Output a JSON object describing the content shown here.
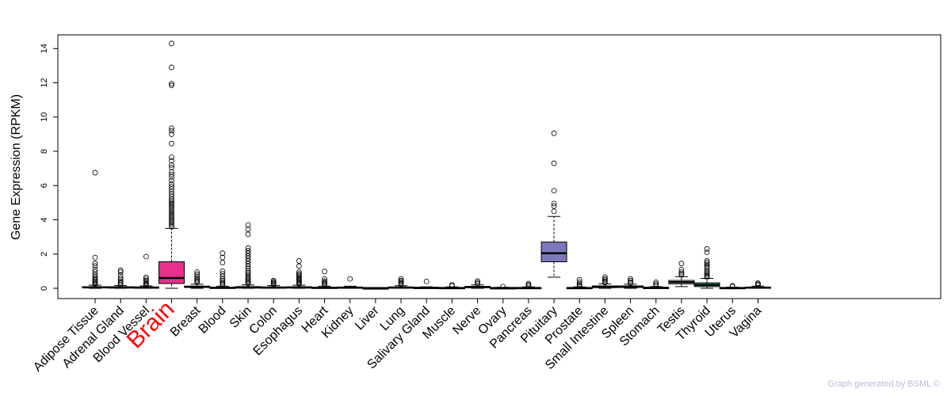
{
  "chart_data": {
    "type": "box",
    "title": "",
    "xlabel": "",
    "ylabel": "Gene Expression (RPKM)",
    "ylim": [
      -0.6,
      14.8
    ],
    "yticks": [
      0,
      2,
      4,
      6,
      8,
      10,
      12,
      14
    ],
    "grid": false,
    "legend": "none",
    "highlight_category": "Brain",
    "highlight_label_color": "#ff0000",
    "categories": [
      {
        "name": "Adipose Tissue",
        "q1": 0.03,
        "median": 0.06,
        "q3": 0.09,
        "whisker_low": 0.0,
        "whisker_high": 0.18,
        "fill": "#ffffff",
        "outliers": [
          6.75,
          1.8,
          1.45,
          1.3,
          1.1,
          0.95,
          0.8,
          0.7,
          0.6,
          0.5,
          0.42,
          0.35,
          0.28,
          0.22
        ]
      },
      {
        "name": "Adrenal Gland",
        "q1": 0.03,
        "median": 0.05,
        "q3": 0.09,
        "whisker_low": 0.0,
        "whisker_high": 0.16,
        "fill": "#ffffff",
        "outliers": [
          1.05,
          0.95,
          0.75,
          0.6,
          0.48,
          0.38,
          0.3,
          0.22
        ]
      },
      {
        "name": "Blood Vessel",
        "q1": 0.02,
        "median": 0.04,
        "q3": 0.08,
        "whisker_low": 0.0,
        "whisker_high": 0.14,
        "fill": "#ffffff",
        "outliers": [
          1.85,
          0.65,
          0.55,
          0.45,
          0.38,
          0.3,
          0.24,
          0.18
        ]
      },
      {
        "name": "Brain",
        "q1": 0.28,
        "median": 0.6,
        "q3": 1.55,
        "whisker_low": 0.0,
        "whisker_high": 3.5,
        "fill": "#e8308c",
        "outliers": [
          14.3,
          12.9,
          11.95,
          11.85,
          9.35,
          9.2,
          9.0,
          8.45,
          7.65,
          7.45,
          7.2,
          7.05,
          6.8,
          6.65,
          6.5,
          6.3,
          6.1,
          5.95,
          5.8,
          5.65,
          5.5,
          5.35,
          5.2,
          5.1,
          5.0,
          4.9,
          4.8,
          4.7,
          4.6,
          4.5,
          4.4,
          4.3,
          4.2,
          4.1,
          4.0,
          3.9,
          3.8,
          3.7,
          3.6
        ]
      },
      {
        "name": "Breast",
        "q1": 0.05,
        "median": 0.08,
        "q3": 0.13,
        "whisker_low": 0.0,
        "whisker_high": 0.24,
        "fill": "#ffffff",
        "outliers": [
          0.95,
          0.82,
          0.7,
          0.6,
          0.5,
          0.42,
          0.35
        ]
      },
      {
        "name": "Blood",
        "q1": 0.01,
        "median": 0.03,
        "q3": 0.06,
        "whisker_low": 0.0,
        "whisker_high": 0.12,
        "fill": "#ffffff",
        "outliers": [
          2.05,
          1.8,
          1.5,
          1.0,
          0.85,
          0.7,
          0.55,
          0.45,
          0.35,
          0.27,
          0.2
        ]
      },
      {
        "name": "Skin",
        "q1": 0.02,
        "median": 0.05,
        "q3": 0.1,
        "whisker_low": 0.0,
        "whisker_high": 0.2,
        "fill": "#ffffff",
        "outliers": [
          3.7,
          3.45,
          3.15,
          2.35,
          2.2,
          2.05,
          1.9,
          1.75,
          1.6,
          1.45,
          1.3,
          1.15,
          1.0,
          0.9,
          0.8,
          0.7,
          0.6,
          0.5,
          0.42,
          0.35,
          0.28
        ]
      },
      {
        "name": "Colon",
        "q1": 0.02,
        "median": 0.04,
        "q3": 0.08,
        "whisker_low": 0.0,
        "whisker_high": 0.16,
        "fill": "#ffffff",
        "outliers": [
          0.45,
          0.38,
          0.32,
          0.26,
          0.21
        ]
      },
      {
        "name": "Esophagus",
        "q1": 0.02,
        "median": 0.05,
        "q3": 0.09,
        "whisker_low": 0.0,
        "whisker_high": 0.18,
        "fill": "#ffffff",
        "outliers": [
          1.6,
          1.3,
          0.95,
          0.85,
          0.78,
          0.7,
          0.62,
          0.55,
          0.48,
          0.42,
          0.36,
          0.3,
          0.25
        ]
      },
      {
        "name": "Heart",
        "q1": 0.01,
        "median": 0.03,
        "q3": 0.06,
        "whisker_low": 0.0,
        "whisker_high": 0.12,
        "fill": "#ffffff",
        "outliers": [
          0.98,
          0.55,
          0.42,
          0.34,
          0.27,
          0.2
        ]
      },
      {
        "name": "Kidney",
        "q1": 0.02,
        "median": 0.04,
        "q3": 0.07,
        "whisker_low": 0.0,
        "whisker_high": 0.12,
        "fill": "#ffffff",
        "outliers": [
          0.55
        ]
      },
      {
        "name": "Liver",
        "q1": 0.0,
        "median": 0.01,
        "q3": 0.02,
        "whisker_low": 0.0,
        "whisker_high": 0.04,
        "fill": "#ffffff",
        "outliers": []
      },
      {
        "name": "Lung",
        "q1": 0.02,
        "median": 0.04,
        "q3": 0.08,
        "whisker_low": 0.0,
        "whisker_high": 0.15,
        "fill": "#ffffff",
        "outliers": [
          0.55,
          0.45,
          0.38,
          0.3,
          0.24
        ]
      },
      {
        "name": "Salivary Gland",
        "q1": 0.02,
        "median": 0.03,
        "q3": 0.05,
        "whisker_low": 0.0,
        "whisker_high": 0.09,
        "fill": "#ffffff",
        "outliers": [
          0.4
        ]
      },
      {
        "name": "Muscle",
        "q1": 0.01,
        "median": 0.02,
        "q3": 0.04,
        "whisker_low": 0.0,
        "whisker_high": 0.08,
        "fill": "#ffffff",
        "outliers": [
          0.2,
          0.14
        ]
      },
      {
        "name": "Nerve",
        "q1": 0.04,
        "median": 0.07,
        "q3": 0.11,
        "whisker_low": 0.0,
        "whisker_high": 0.2,
        "fill": "#ffffff",
        "outliers": [
          0.42,
          0.33,
          0.26
        ]
      },
      {
        "name": "Ovary",
        "q1": 0.0,
        "median": 0.02,
        "q3": 0.03,
        "whisker_low": 0.0,
        "whisker_high": 0.06,
        "fill": "#ffffff",
        "outliers": [
          0.1
        ]
      },
      {
        "name": "Pancreas",
        "q1": 0.01,
        "median": 0.02,
        "q3": 0.04,
        "whisker_low": 0.0,
        "whisker_high": 0.08,
        "fill": "#ffffff",
        "outliers": [
          0.28,
          0.2,
          0.14
        ]
      },
      {
        "name": "Pituitary",
        "q1": 1.55,
        "median": 2.05,
        "q3": 2.7,
        "whisker_low": 0.65,
        "whisker_high": 4.2,
        "fill": "#7b78bb",
        "outliers": [
          9.05,
          7.3,
          5.7,
          4.95,
          4.8,
          4.5
        ]
      },
      {
        "name": "Prostate",
        "q1": 0.01,
        "median": 0.02,
        "q3": 0.04,
        "whisker_low": 0.0,
        "whisker_high": 0.08,
        "fill": "#ffffff",
        "outliers": [
          0.5,
          0.35,
          0.25,
          0.18,
          0.12
        ]
      },
      {
        "name": "Small Intestine",
        "q1": 0.04,
        "median": 0.08,
        "q3": 0.14,
        "whisker_low": 0.0,
        "whisker_high": 0.26,
        "fill": "#ffffff",
        "outliers": [
          0.65,
          0.55,
          0.48,
          0.4,
          0.33
        ]
      },
      {
        "name": "Spleen",
        "q1": 0.05,
        "median": 0.09,
        "q3": 0.14,
        "whisker_low": 0.0,
        "whisker_high": 0.24,
        "fill": "#ffffff",
        "outliers": [
          0.55,
          0.45,
          0.36,
          0.3
        ]
      },
      {
        "name": "Stomach",
        "q1": 0.01,
        "median": 0.03,
        "q3": 0.05,
        "whisker_low": 0.0,
        "whisker_high": 0.1,
        "fill": "#ffffff",
        "outliers": [
          0.35,
          0.25,
          0.18
        ]
      },
      {
        "name": "Testis",
        "q1": 0.26,
        "median": 0.36,
        "q3": 0.46,
        "whisker_low": 0.1,
        "whisker_high": 0.68,
        "fill": "#ffffff",
        "outliers": [
          1.45,
          1.1,
          0.95,
          0.85,
          0.78
        ]
      },
      {
        "name": "Thyroid",
        "q1": 0.1,
        "median": 0.2,
        "q3": 0.32,
        "whisker_low": 0.0,
        "whisker_high": 0.58,
        "fill": "#3fae8e",
        "outliers": [
          2.3,
          2.1,
          1.6,
          1.5,
          1.4,
          1.3,
          1.2,
          1.05,
          0.95,
          0.88,
          0.8,
          0.72,
          0.65
        ]
      },
      {
        "name": "Uterus",
        "q1": 0.01,
        "median": 0.02,
        "q3": 0.04,
        "whisker_low": 0.0,
        "whisker_high": 0.07,
        "fill": "#ffffff",
        "outliers": [
          0.15,
          0.1
        ]
      },
      {
        "name": "Vagina",
        "q1": 0.02,
        "median": 0.04,
        "q3": 0.07,
        "whisker_low": 0.0,
        "whisker_high": 0.13,
        "fill": "#ffffff",
        "outliers": [
          0.3,
          0.24,
          0.18
        ]
      }
    ]
  },
  "credit": "Graph generated by BSML ©"
}
